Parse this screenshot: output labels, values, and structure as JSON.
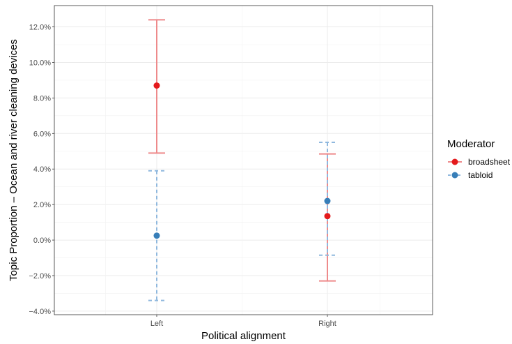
{
  "chart_data": {
    "type": "errorbar",
    "title": "",
    "xlabel": "Political alignment",
    "ylabel": "Topic Proportion – Ocean and river cleaning devices",
    "categories": [
      "Left",
      "Right"
    ],
    "ylim": [
      -0.042,
      0.132
    ],
    "yticks": [
      -0.04,
      -0.02,
      0.0,
      0.02,
      0.04,
      0.06,
      0.08,
      0.1,
      0.12
    ],
    "ytick_labels": [
      "−4.0%",
      "−2.0%",
      "0.0%",
      "2.0%",
      "4.0%",
      "6.0%",
      "8.0%",
      "10.0%",
      "12.0%"
    ],
    "grid": true,
    "legend_position": "right",
    "legend_title": "Moderator",
    "series": [
      {
        "name": "broadsheet",
        "color": "#e41a1c",
        "line_style": "solid",
        "points": [
          {
            "x": "Left",
            "y": 0.087,
            "lower": 0.049,
            "upper": 0.124
          },
          {
            "x": "Right",
            "y": 0.0135,
            "lower": -0.023,
            "upper": 0.0485
          }
        ]
      },
      {
        "name": "tabloid",
        "color": "#377eb8",
        "line_style": "dashed",
        "points": [
          {
            "x": "Left",
            "y": 0.0025,
            "lower": -0.034,
            "upper": 0.039
          },
          {
            "x": "Right",
            "y": 0.022,
            "lower": -0.0085,
            "upper": 0.055
          }
        ]
      }
    ]
  }
}
